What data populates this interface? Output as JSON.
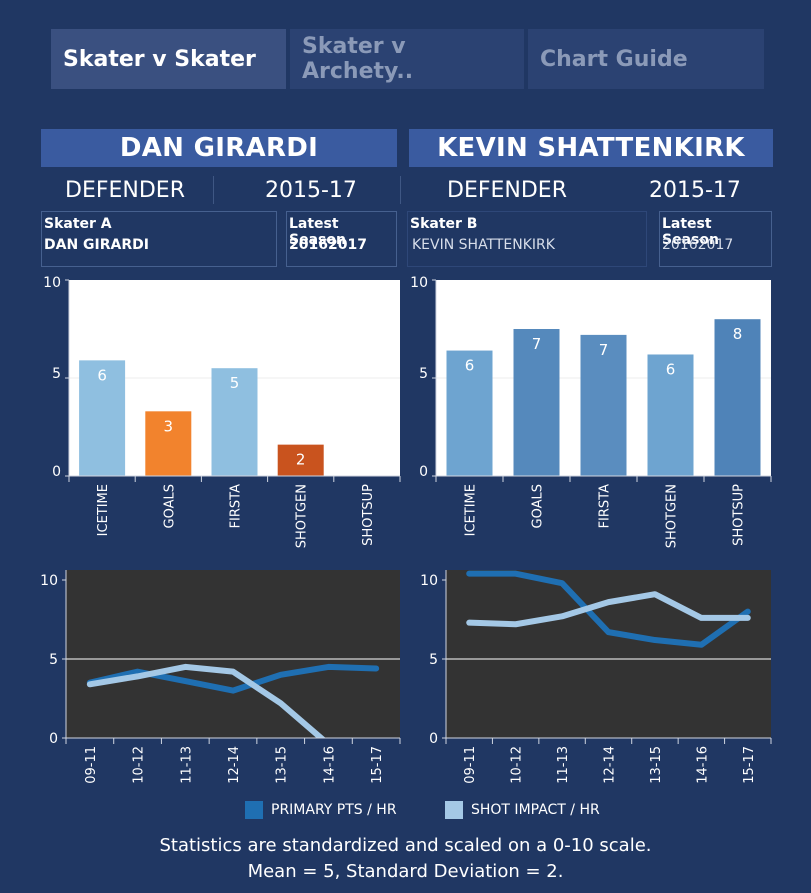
{
  "tabs": [
    {
      "label": "Skater v Skater",
      "active": true
    },
    {
      "label": "Skater v Archety..",
      "active": false
    },
    {
      "label": "Chart Guide",
      "active": false
    }
  ],
  "skater_a": {
    "name": "DAN GIRARDI",
    "position": "DEFENDER",
    "seasons": "2015-17",
    "selector_label": "Skater A",
    "selector_value": "DAN GIRARDI",
    "season_label": "Latest Season",
    "season_value": "20162017"
  },
  "skater_b": {
    "name": "KEVIN SHATTENKIRK",
    "position": "DEFENDER",
    "seasons": "2015-17",
    "selector_label": "Skater B",
    "selector_value": "KEVIN SHATTENKIRK",
    "season_label": "Latest Season",
    "season_value": "20162017"
  },
  "legend": {
    "primary": {
      "label": "PRIMARY PTS / HR",
      "color": "#1f6fb2"
    },
    "shot": {
      "label": "SHOT IMPACT / HR",
      "color": "#a4c8e6"
    }
  },
  "footnote": {
    "line1": "Statistics are standardized and scaled on a 0-10 scale.",
    "line2": "Mean = 5, Standard Deviation = 2."
  },
  "chart_data": [
    {
      "type": "bar",
      "id": "bar-a",
      "categories": [
        "ICETIME",
        "GOALS",
        "FIRSTA",
        "SHOTGEN",
        "SHOTSUP"
      ],
      "values": [
        5.9,
        3.3,
        5.5,
        1.6,
        null
      ],
      "labels": [
        "6",
        "3",
        "5",
        "2",
        ""
      ],
      "colors": [
        "#8fbfe0",
        "#f2832d",
        "#8fbfe0",
        "#c9531e",
        "#8fbfe0"
      ],
      "ylim": [
        0,
        10
      ],
      "yticks": [
        "0",
        "5",
        "10"
      ]
    },
    {
      "type": "bar",
      "id": "bar-b",
      "categories": [
        "ICETIME",
        "GOALS",
        "FIRSTA",
        "SHOTGEN",
        "SHOTSUP"
      ],
      "values": [
        6.4,
        7.5,
        7.2,
        6.2,
        8.0
      ],
      "labels": [
        "6",
        "7",
        "7",
        "6",
        "8"
      ],
      "colors": [
        "#6ea4d0",
        "#5589bc",
        "#5a8dbf",
        "#6ea4d0",
        "#4f83b8"
      ],
      "ylim": [
        0,
        10
      ],
      "yticks": [
        "0",
        "5",
        "10"
      ]
    },
    {
      "type": "line",
      "id": "line-a",
      "x": [
        "09-11",
        "10-12",
        "11-13",
        "12-14",
        "13-15",
        "14-16",
        "15-17"
      ],
      "series": [
        {
          "name": "PRIMARY PTS / HR",
          "color": "#1f6fb2",
          "values": [
            3.5,
            4.2,
            3.6,
            3.0,
            4.0,
            4.5,
            4.4
          ]
        },
        {
          "name": "SHOT IMPACT / HR",
          "color": "#a4c8e6",
          "values": [
            3.4,
            3.9,
            4.5,
            4.2,
            2.2,
            -0.4,
            -1.0
          ]
        }
      ],
      "ylim": [
        0,
        10
      ],
      "yticks": [
        "0",
        "5",
        "10"
      ]
    },
    {
      "type": "line",
      "id": "line-b",
      "x": [
        "09-11",
        "10-12",
        "11-13",
        "12-14",
        "13-15",
        "14-16",
        "15-17"
      ],
      "series": [
        {
          "name": "PRIMARY PTS / HR",
          "color": "#1f6fb2",
          "values": [
            10.4,
            10.4,
            9.8,
            6.7,
            6.2,
            5.9,
            8.0
          ]
        },
        {
          "name": "SHOT IMPACT / HR",
          "color": "#a4c8e6",
          "values": [
            7.3,
            7.2,
            7.7,
            8.6,
            9.1,
            7.6,
            7.6
          ]
        }
      ],
      "ylim": [
        0,
        10
      ],
      "yticks": [
        "0",
        "5",
        "10"
      ]
    }
  ]
}
